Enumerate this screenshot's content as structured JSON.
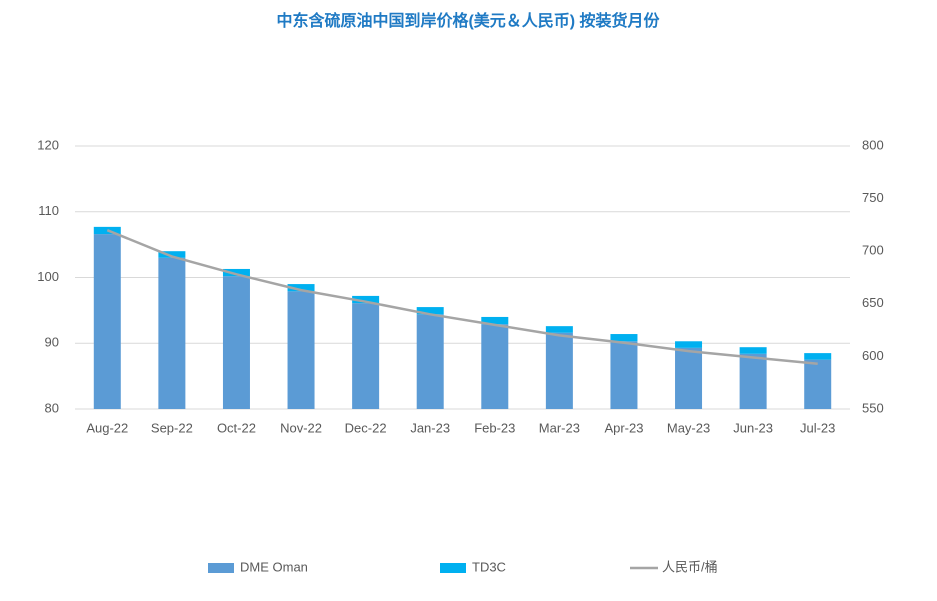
{
  "chart_data": {
    "type": "stacked_bar_line",
    "title": "中东含硫原油中国到岸价格(美元＆人民币) 按装货月份",
    "categories": [
      "Aug-22",
      "Sep-22",
      "Oct-22",
      "Nov-22",
      "Dec-22",
      "Jan-23",
      "Feb-23",
      "Mar-23",
      "Apr-23",
      "May-23",
      "Jun-23",
      "Jul-23"
    ],
    "series": [
      {
        "name": "DME Oman",
        "color": "#5b9bd5",
        "type": "bar",
        "values": [
          106.6,
          103.0,
          100.2,
          97.9,
          96.1,
          94.4,
          92.9,
          91.6,
          90.3,
          89.3,
          88.4,
          87.5
        ]
      },
      {
        "name": "TD3C",
        "color": "#00b0f0",
        "type": "bar",
        "values": [
          1.1,
          1.0,
          1.1,
          1.1,
          1.1,
          1.1,
          1.1,
          1.0,
          1.1,
          1.0,
          1.0,
          1.0
        ]
      },
      {
        "name": "人民币/桶",
        "color": "#a5a5a5",
        "type": "line",
        "axis": "y2",
        "values": [
          720,
          695,
          678,
          663,
          652,
          640,
          630,
          620,
          613,
          605,
          599,
          593
        ]
      }
    ],
    "ylim": [
      80,
      120
    ],
    "yticks": [
      80,
      90,
      100,
      110,
      120
    ],
    "y2lim": [
      550,
      800
    ],
    "y2ticks": [
      550,
      600,
      650,
      700,
      750,
      800
    ],
    "grid": true,
    "legend": "bottom"
  }
}
